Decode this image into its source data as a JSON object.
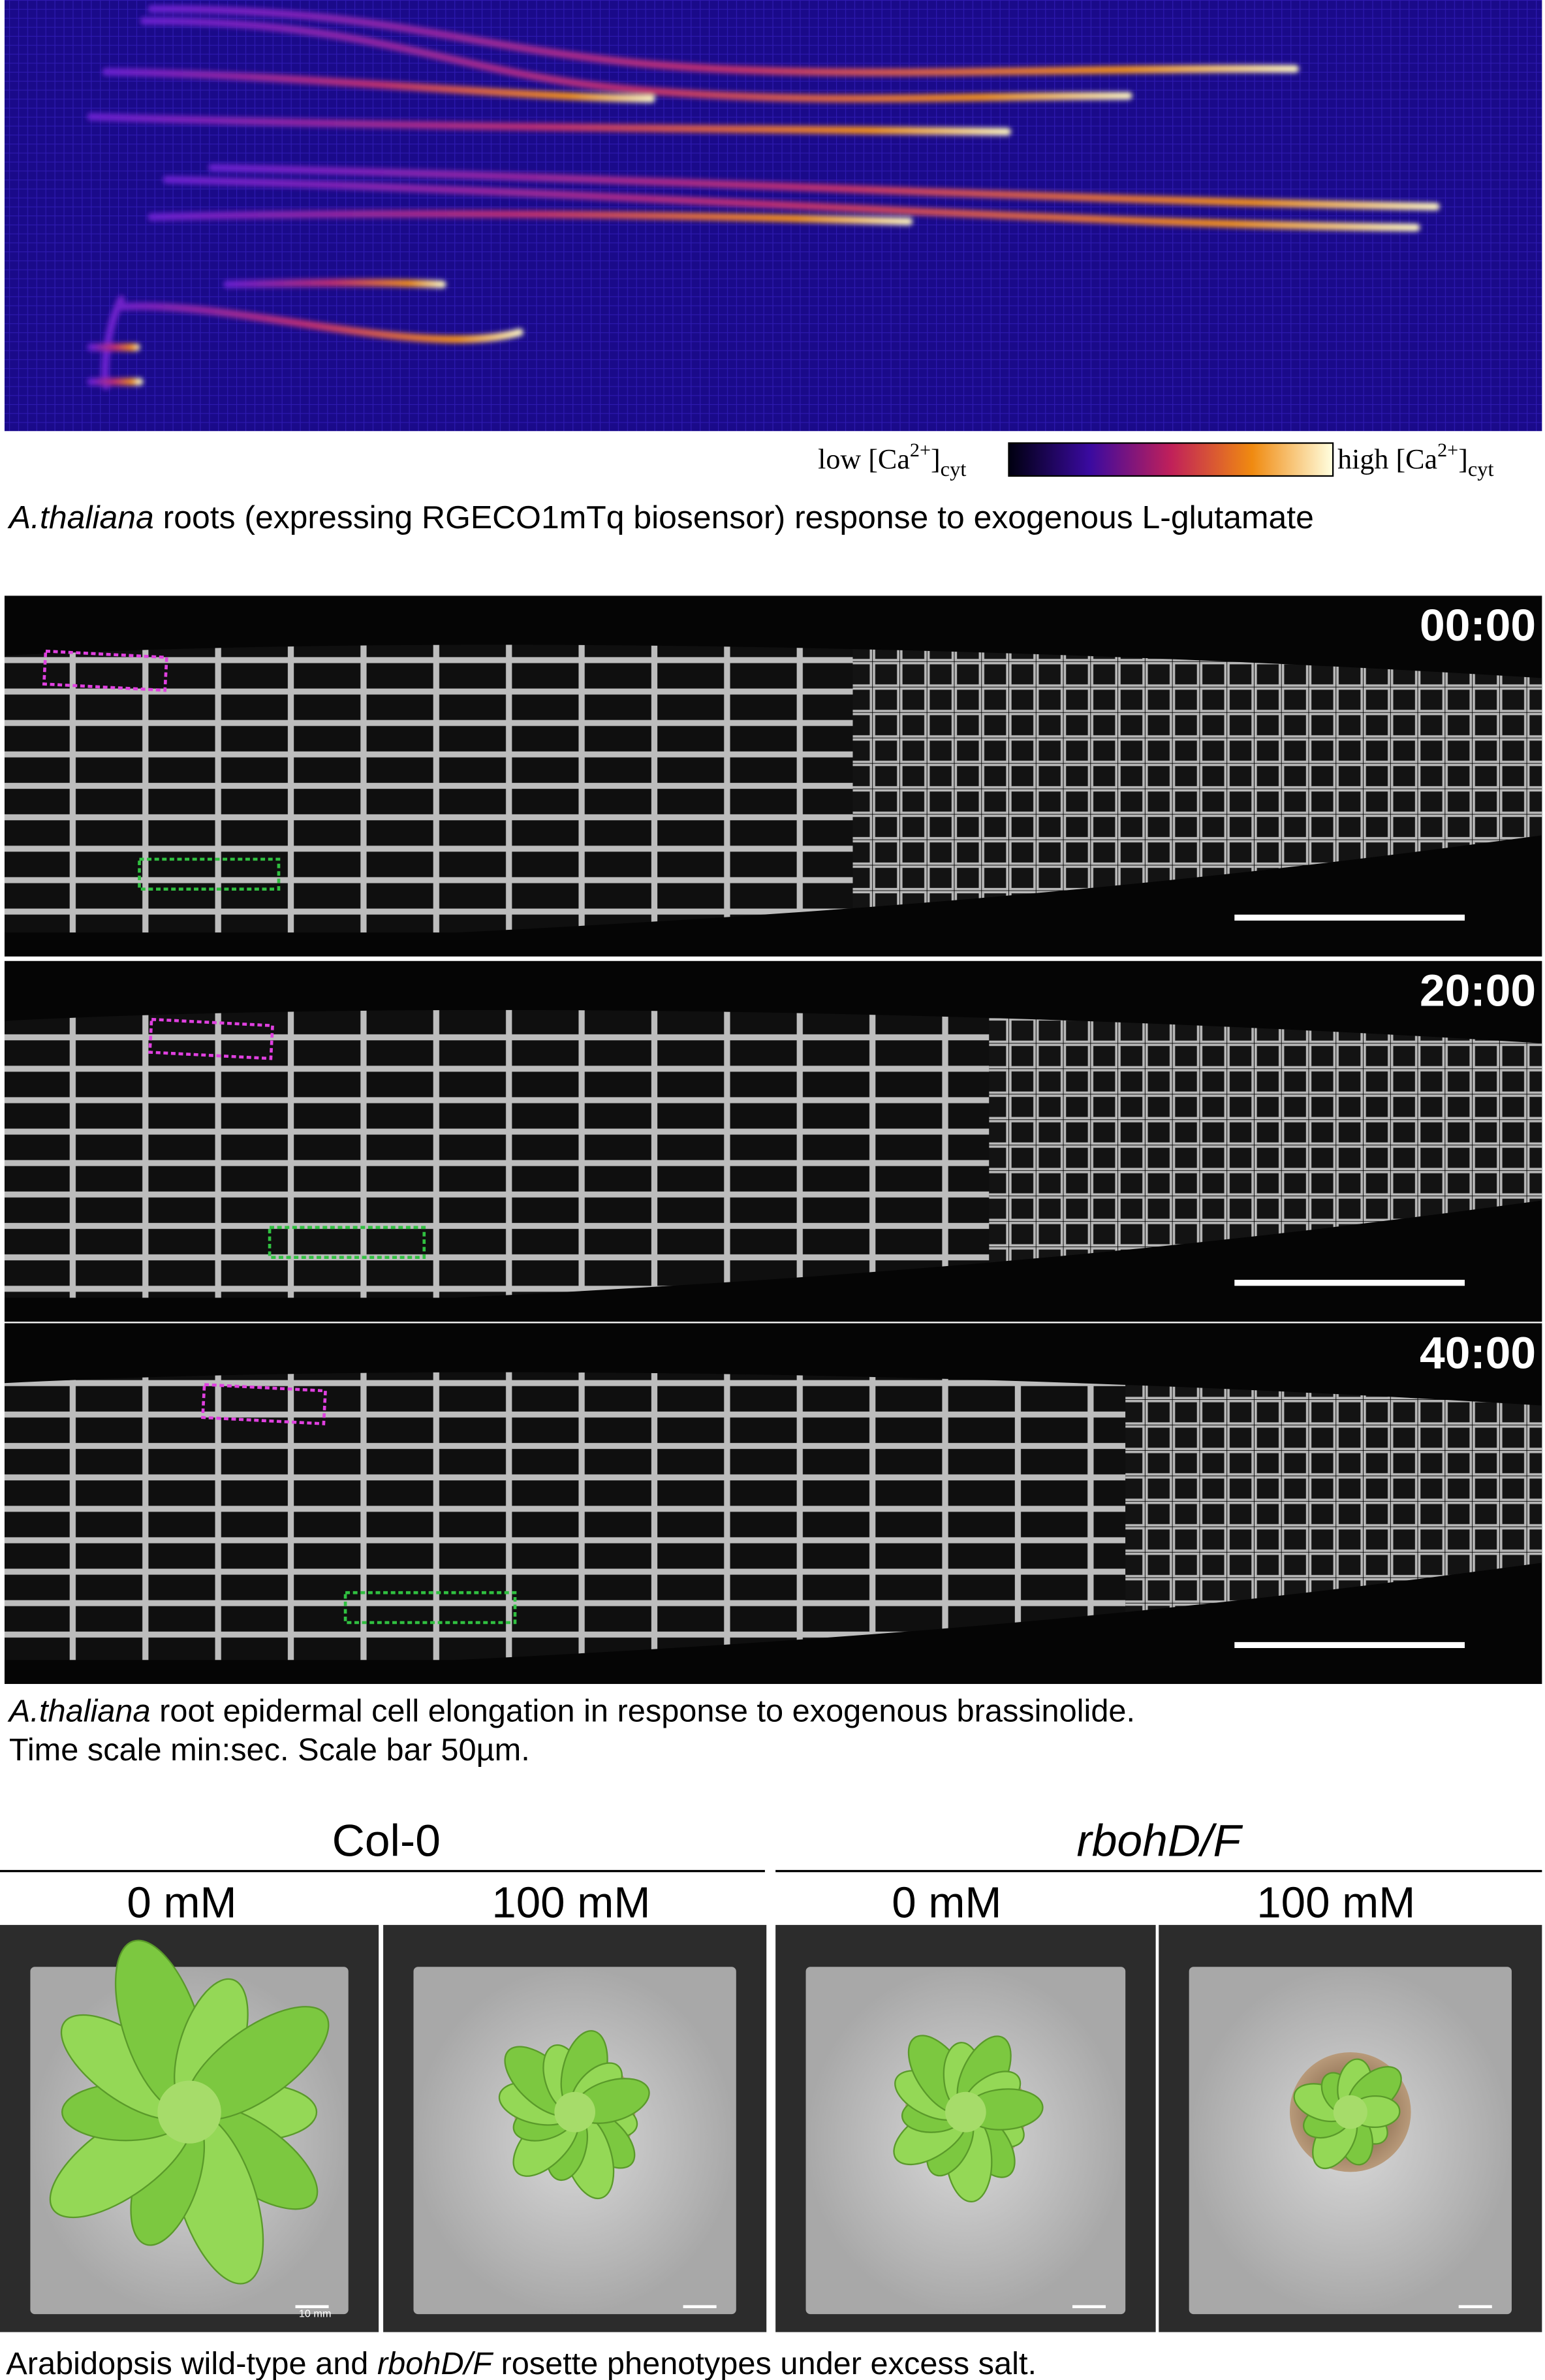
{
  "panel_a": {
    "colorbar": {
      "low": {
        "prefix": "low [Ca",
        "sup": "2+",
        "close": "]",
        "sub": "cyt"
      },
      "high": {
        "prefix": "high [Ca",
        "sup": "2+",
        "close": "]",
        "sub": "cyt"
      }
    },
    "caption": {
      "species": "A.thaliana",
      "text": " roots (expressing RGECO1mTq biosensor) response to exogenous L-glutamate"
    }
  },
  "panel_b": {
    "time_labels": [
      "00:00",
      "20:00",
      "40:00"
    ],
    "caption": {
      "species": "A.thaliana",
      "line1": " root epidermal cell elongation in response to exogenous brassinolide.",
      "line2": "Time scale min:sec. Scale bar 50µm."
    }
  },
  "panel_c": {
    "groups": [
      {
        "name": "Col-0",
        "conditions": [
          "0 mM",
          "100 mM"
        ]
      },
      {
        "name": "rbohD/F",
        "conditions": [
          "0 mM",
          "100 mM"
        ]
      }
    ],
    "scale_label": "10 mm",
    "caption": {
      "before": "Arabidopsis wild-type and ",
      "mutant": "rbohD/F",
      "after": " rosette phenotypes under excess salt."
    }
  }
}
